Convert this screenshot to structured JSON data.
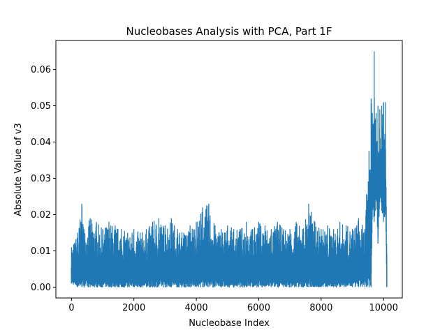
{
  "chart_data": {
    "type": "line",
    "title": "Nucleobases Analysis with PCA, Part 1F",
    "xlabel": "Nucleobase Index",
    "ylabel": "Absolute Value of v3",
    "xlim": [
      -500,
      10600
    ],
    "ylim": [
      -0.003,
      0.068
    ],
    "xticks": [
      0,
      2000,
      4000,
      6000,
      8000,
      10000
    ],
    "xtick_labels": [
      "0",
      "2000",
      "4000",
      "6000",
      "8000",
      "10000"
    ],
    "yticks": [
      0.0,
      0.01,
      0.02,
      0.03,
      0.04,
      0.05,
      0.06
    ],
    "ytick_labels": [
      "0.00",
      "0.01",
      "0.02",
      "0.03",
      "0.04",
      "0.05",
      "0.06"
    ],
    "grid": false,
    "series": [
      {
        "color": "#1f77b4",
        "x": [
          0,
          200,
          330,
          400,
          600,
          800,
          1000,
          1200,
          1400,
          1600,
          1800,
          2000,
          2200,
          2400,
          2600,
          2800,
          3000,
          3200,
          3400,
          3600,
          3800,
          4000,
          4200,
          4400,
          4600,
          4800,
          5000,
          5200,
          5400,
          5600,
          5800,
          6000,
          6200,
          6400,
          6600,
          6800,
          7000,
          7200,
          7400,
          7600,
          7800,
          8000,
          8200,
          8400,
          8600,
          8800,
          9000,
          9200,
          9400,
          9600,
          9640,
          9700,
          9760,
          9820,
          9880,
          9940,
          10000,
          10060,
          10100
        ],
        "y_max": [
          0.011,
          0.015,
          0.023,
          0.016,
          0.019,
          0.018,
          0.016,
          0.018,
          0.017,
          0.016,
          0.015,
          0.016,
          0.015,
          0.016,
          0.018,
          0.019,
          0.017,
          0.019,
          0.016,
          0.015,
          0.017,
          0.018,
          0.022,
          0.023,
          0.017,
          0.016,
          0.017,
          0.016,
          0.016,
          0.018,
          0.016,
          0.018,
          0.017,
          0.016,
          0.018,
          0.016,
          0.016,
          0.018,
          0.016,
          0.023,
          0.018,
          0.016,
          0.017,
          0.016,
          0.018,
          0.017,
          0.016,
          0.019,
          0.016,
          0.052,
          0.048,
          0.065,
          0.048,
          0.05,
          0.049,
          0.05,
          0.051,
          0.051,
          0.012
        ],
        "y_min": [
          0.001,
          0.0,
          0.0,
          0.0,
          0.0,
          0.0,
          0.0,
          0.0,
          0.0,
          0.0,
          0.0,
          0.0,
          0.0,
          0.0,
          0.0,
          0.0,
          0.0,
          0.0,
          0.0,
          0.0,
          0.0,
          0.0,
          0.0,
          0.0,
          0.0,
          0.0,
          0.0,
          0.0,
          0.0,
          0.0,
          0.0,
          0.0,
          0.0,
          0.0,
          0.0,
          0.0,
          0.0,
          0.0,
          0.0,
          0.0,
          0.0,
          0.0,
          0.0,
          0.0,
          0.0,
          0.0,
          0.0,
          0.0,
          0.0,
          0.0,
          0.021,
          0.018,
          0.024,
          0.012,
          0.025,
          0.021,
          0.018,
          0.02,
          0.0
        ]
      }
    ]
  }
}
